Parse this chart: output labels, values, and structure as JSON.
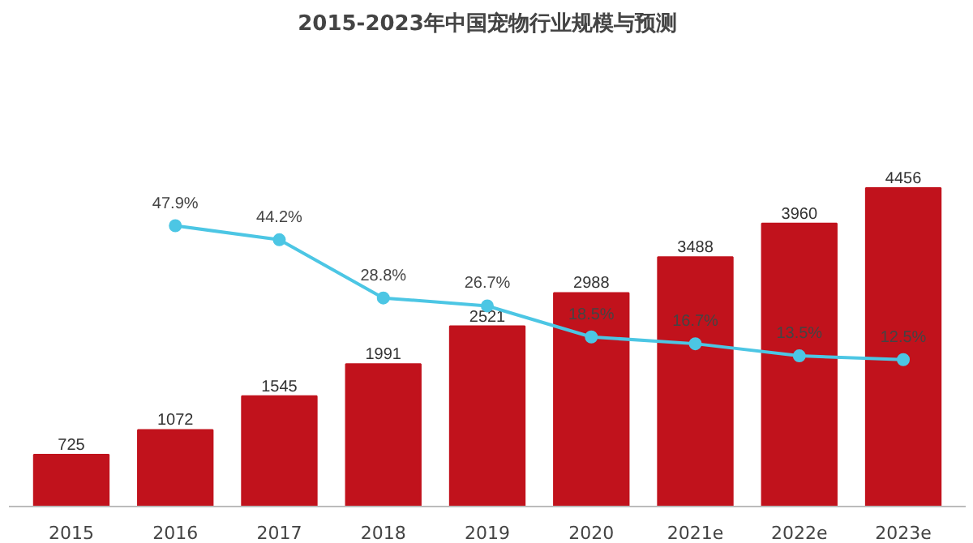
{
  "chart_data": {
    "type": "bar",
    "title": "2015-2023年中国宠物行业规模与预测",
    "categories": [
      "2015",
      "2016",
      "2017",
      "2018",
      "2019",
      "2020",
      "2021e",
      "2022e",
      "2023e"
    ],
    "tick_labels": "x",
    "grid": false,
    "data_labels": true,
    "series": [
      {
        "color": "#c1121c",
        "values": [
          725,
          1072,
          1545,
          1991,
          2521,
          2988,
          3488,
          3960,
          4456
        ]
      },
      {
        "type": "line",
        "axis": "y2",
        "color": "#4cc6e4",
        "marker": "circle",
        "line_style": "solid",
        "values": [
          null,
          47.9,
          44.2,
          28.8,
          26.7,
          18.5,
          16.7,
          13.5,
          12.5
        ],
        "value_labels": [
          null,
          "47.9%",
          "44.2%",
          "28.8%",
          "26.7%",
          "18.5%",
          "16.7%",
          "13.5%",
          "12.5%"
        ]
      }
    ]
  }
}
